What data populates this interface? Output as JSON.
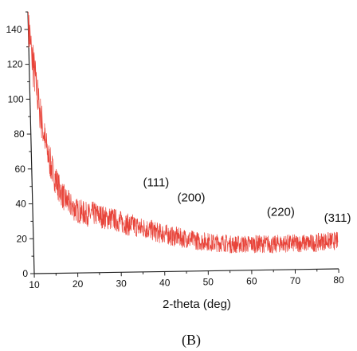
{
  "chart_data": {
    "type": "line",
    "xlabel": "2-theta (deg)",
    "ylabel": "",
    "xlim": [
      10,
      80
    ],
    "ylim": [
      0,
      150
    ],
    "x_ticks": [
      10,
      20,
      30,
      40,
      50,
      60,
      70,
      80
    ],
    "y_ticks": [
      0,
      20,
      40,
      60,
      80,
      100,
      120,
      140
    ],
    "grid": false,
    "legend": "none",
    "series": [
      {
        "color": "#e8443a",
        "x": [
          10,
          10.5,
          11,
          11.5,
          12,
          12.5,
          13,
          13.5,
          14,
          15,
          16,
          17,
          18,
          19,
          20,
          21,
          22,
          23,
          24,
          25,
          26,
          27,
          28,
          29,
          30,
          31,
          32,
          33,
          34,
          35,
          36,
          37,
          38,
          39,
          40,
          41,
          42,
          43,
          44,
          45,
          46,
          47,
          48,
          49,
          50,
          51,
          52,
          53,
          54,
          55,
          56,
          57,
          58,
          59,
          60,
          61,
          62,
          63,
          64,
          65,
          66,
          67,
          68,
          69,
          70,
          71,
          72,
          73,
          74,
          75,
          76,
          77,
          78,
          79,
          80
        ],
        "y": [
          148,
          128,
          118,
          108,
          97,
          88,
          80,
          72,
          66,
          57,
          50,
          44,
          41,
          38,
          36,
          35,
          34,
          33,
          34,
          33,
          32,
          31,
          31,
          30,
          29,
          28,
          27,
          27,
          26,
          25,
          25,
          24,
          23,
          22,
          22,
          21,
          20,
          20,
          19,
          19,
          18,
          18,
          17,
          17,
          17,
          16,
          16,
          16,
          16,
          15,
          15,
          15,
          15,
          15,
          15,
          15,
          15,
          15,
          15,
          14,
          15,
          15,
          15,
          15,
          15,
          15,
          15,
          15,
          15,
          15,
          16,
          16,
          16,
          16,
          16
        ],
        "noise": 6
      }
    ],
    "annotations": [
      {
        "text": "(111)",
        "x": 38.5,
        "y": 49
      },
      {
        "text": "(200)",
        "x": 46.5,
        "y": 40
      },
      {
        "text": "(220)",
        "x": 67,
        "y": 31
      },
      {
        "text": "(311)",
        "x": 80,
        "y": 27
      }
    ]
  },
  "panel_label": "(B)"
}
